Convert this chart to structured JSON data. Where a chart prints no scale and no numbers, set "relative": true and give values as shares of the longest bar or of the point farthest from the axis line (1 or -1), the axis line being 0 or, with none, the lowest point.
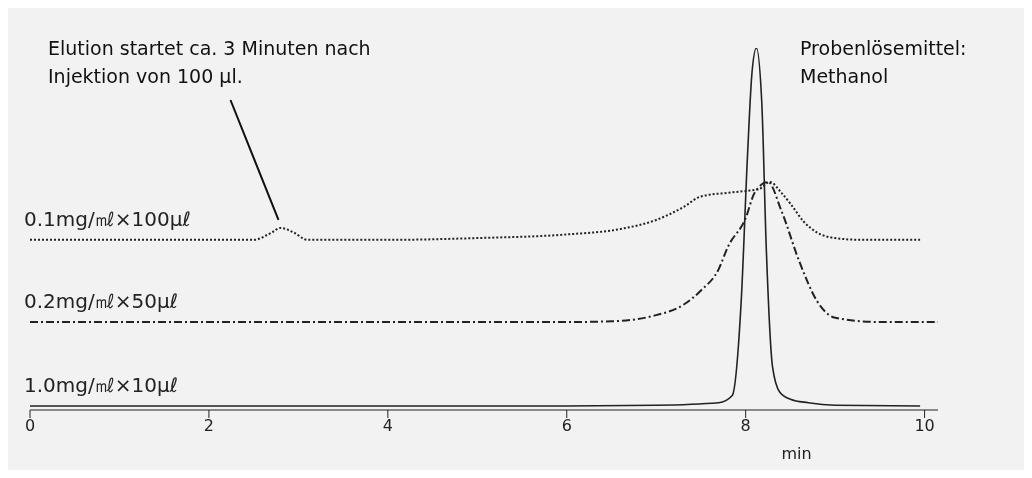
{
  "chart_data": {
    "type": "line",
    "relative": true,
    "xlabel": "min",
    "xlim": [
      0,
      10.15
    ],
    "xticks": [
      0,
      2,
      4,
      6,
      8,
      10
    ],
    "annotations": [
      {
        "text": "Elution startet ca. 3 Minuten nach Injektion von 100 µl.",
        "x": 2.8,
        "y": 0.503
      },
      "Probenlösemittel: Methanol"
    ],
    "series": [
      {
        "name": "0.1mg/㎖×100μℓ",
        "color": "#222222",
        "line_style": "dotted",
        "x": [
          0,
          2.5,
          2.7,
          2.8,
          2.95,
          3.1,
          4,
          5,
          6,
          6.6,
          7,
          7.3,
          7.5,
          7.8,
          8.0,
          8.15,
          8.27,
          8.4,
          8.5,
          8.65,
          8.8,
          9.0,
          9.3,
          9.95
        ],
        "values": [
          0.47,
          0.47,
          0.49,
          0.503,
          0.49,
          0.47,
          0.47,
          0.475,
          0.485,
          0.5,
          0.525,
          0.56,
          0.59,
          0.6,
          0.605,
          0.61,
          0.63,
          0.6,
          0.57,
          0.52,
          0.49,
          0.475,
          0.47,
          0.47
        ]
      },
      {
        "name": "0.2mg/㎖×50μℓ",
        "color": "#222222",
        "line_style": "dashed",
        "x": [
          0,
          3,
          5,
          6,
          6.5,
          7,
          7.3,
          7.5,
          7.7,
          7.8,
          8.0,
          8.1,
          8.25,
          8.4,
          8.6,
          8.8,
          9.0,
          9.5,
          10.15
        ],
        "values": [
          0.243,
          0.243,
          0.243,
          0.243,
          0.245,
          0.262,
          0.29,
          0.33,
          0.39,
          0.45,
          0.53,
          0.6,
          0.63,
          0.55,
          0.41,
          0.3,
          0.255,
          0.243,
          0.243
        ]
      },
      {
        "name": "1.0mg/㎖×10μℓ",
        "color": "#222222",
        "line_style": "solid",
        "x": [
          0,
          4,
          6,
          7,
          7.7,
          7.85,
          7.95,
          8.02,
          8.07,
          8.12,
          8.18,
          8.23,
          8.3,
          8.38,
          8.5,
          8.7,
          9,
          9.95
        ],
        "values": [
          0.011,
          0.011,
          0.011,
          0.013,
          0.02,
          0.04,
          0.3,
          0.7,
          0.93,
          1,
          0.85,
          0.45,
          0.12,
          0.05,
          0.03,
          0.02,
          0.013,
          0.011
        ]
      }
    ]
  }
}
